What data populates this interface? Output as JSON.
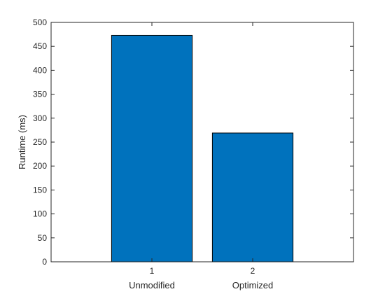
{
  "chart_data": {
    "type": "bar",
    "x_ticks": [
      "1",
      "2"
    ],
    "categories": [
      "Unmodified",
      "Optimized"
    ],
    "values": [
      473,
      269
    ],
    "ylabel": "Runtime (ms)",
    "ylim": [
      0,
      500
    ],
    "xlim": [
      0,
      3
    ],
    "yticks": [
      0,
      50,
      100,
      150,
      200,
      250,
      300,
      350,
      400,
      450,
      500
    ],
    "grid": false,
    "bar_color": "#0072BD",
    "bar_edge_color": "#000000"
  }
}
